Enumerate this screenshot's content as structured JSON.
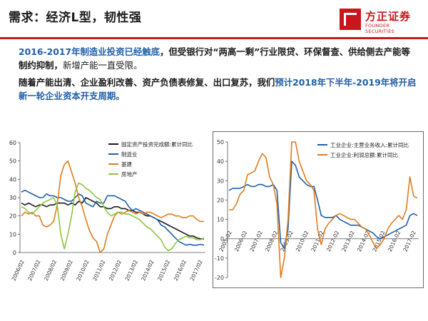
{
  "header": {
    "title": "需求：经济L型，韧性强",
    "logo_cn": "方正证券",
    "logo_en": "FOUNDER SECURITIES"
  },
  "body": {
    "p1_blue": "2016-2017年制造业投资已经触底",
    "p1_black": "，但受银行对“两高一剩”行业限贷、环保督查、供给侧去产能等制约抑制，",
    "p1_light": "新增产能一直受限。",
    "p2_black": "随着产能出清、企业盈利改善、资产负债表修复、出口复苏，我们",
    "p2_blue": "预计2018年下半年-2019年将开启新一轮企业资本开支周期。"
  },
  "chart_data": [
    {
      "type": "line",
      "ylim": [
        0,
        60
      ],
      "yticks": [
        0,
        10,
        20,
        30,
        40,
        50,
        60
      ],
      "xticks": [
        "2006/02",
        "2007/02",
        "2008/02",
        "2009/02",
        "2010/02",
        "2011/02",
        "2012/02",
        "2013/02",
        "2014/02",
        "2015/02",
        "2016/02",
        "2017/02"
      ],
      "legend_position": "top-right",
      "series": [
        {
          "name": "固定资产投资完成额:累计同比",
          "color": "#1a1a1a",
          "values": [
            27,
            26,
            27,
            26,
            25,
            26,
            26,
            25,
            26,
            26,
            27,
            27,
            27,
            26,
            27,
            26,
            28,
            27,
            30,
            29,
            28,
            27,
            25,
            25,
            24,
            24,
            25,
            25,
            24,
            24,
            23,
            23,
            22,
            22,
            21,
            20,
            20,
            19,
            18,
            17,
            16,
            15,
            14,
            13,
            12,
            11,
            10,
            9,
            9,
            8,
            7.5,
            7.5
          ]
        },
        {
          "name": "制造业",
          "color": "#1f5fa8",
          "values": [
            33,
            34,
            33,
            32,
            31,
            30,
            30,
            32,
            31,
            31,
            30,
            30,
            29,
            28,
            28,
            30,
            32,
            31,
            27,
            26,
            25,
            28,
            27,
            27,
            31,
            31,
            31,
            30,
            29,
            28,
            25,
            23,
            24,
            23,
            22,
            21,
            20,
            19,
            18,
            15,
            14,
            12,
            10,
            8,
            6,
            5,
            4,
            4.5,
            4,
            4,
            4.5,
            4
          ]
        },
        {
          "name": "基建",
          "color": "#e07b1e",
          "values": [
            20,
            22,
            21,
            22,
            20,
            20,
            15,
            14,
            15,
            17,
            26,
            42,
            48,
            50,
            44,
            38,
            30,
            25,
            18,
            12,
            8,
            6,
            -1,
            2,
            10,
            15,
            20,
            22,
            21,
            22,
            23,
            22,
            21,
            22,
            21,
            22,
            22,
            21,
            20,
            19,
            20,
            21,
            21,
            20,
            20,
            19,
            19,
            20,
            20,
            18,
            17,
            17
          ]
        },
        {
          "name": "房地产",
          "color": "#8cc63f",
          "values": [
            25,
            24,
            22,
            21,
            23,
            25,
            27,
            28,
            29,
            30,
            26,
            10,
            2,
            10,
            20,
            33,
            38,
            37,
            35,
            34,
            32,
            30,
            29,
            25,
            22,
            20,
            21,
            22,
            22,
            21,
            21,
            20,
            19,
            18,
            16,
            14,
            13,
            11,
            9,
            7,
            3,
            1,
            2,
            5,
            7,
            8,
            9,
            8,
            8,
            7,
            7,
            8
          ]
        }
      ]
    },
    {
      "type": "line",
      "ylim": [
        -20,
        50
      ],
      "yticks": [
        -20,
        -10,
        0,
        10,
        20,
        30,
        40,
        50
      ],
      "xticks": [
        "2005-02",
        "2006-02",
        "2007-02",
        "2008-02",
        "2009-02",
        "2010-02",
        "2011-02",
        "2012-02",
        "2013-02",
        "2014-02",
        "2015-02",
        "2016-02",
        "2017-02"
      ],
      "legend_position": "top-right",
      "series": [
        {
          "name": "工业企业:主营业务收入:累计同比",
          "color": "#1f5fa8",
          "values": [
            25,
            26,
            26,
            26,
            27,
            28,
            27,
            27,
            28,
            28,
            27,
            27,
            28,
            25,
            -2,
            -5,
            5,
            40,
            38,
            32,
            30,
            28,
            27,
            27,
            20,
            12,
            11,
            11,
            11,
            12,
            10,
            9,
            8,
            7,
            7,
            7,
            6,
            5,
            4,
            3,
            1,
            0,
            1,
            2,
            3,
            4,
            5,
            6,
            7,
            12,
            13,
            12
          ]
        },
        {
          "name": "工业企业:利润总额:累计同比",
          "color": "#e07b1e",
          "values": [
            15,
            15,
            18,
            23,
            25,
            33,
            34,
            35,
            40,
            44,
            42,
            32,
            28,
            18,
            -20,
            -10,
            10,
            50,
            50,
            40,
            35,
            30,
            28,
            25,
            5,
            -3,
            5,
            8,
            10,
            12,
            13,
            12,
            11,
            10,
            10,
            8,
            6,
            5,
            2,
            -2,
            -5,
            -3,
            0,
            5,
            8,
            10,
            12,
            10,
            15,
            32,
            22,
            21
          ]
        }
      ]
    }
  ]
}
